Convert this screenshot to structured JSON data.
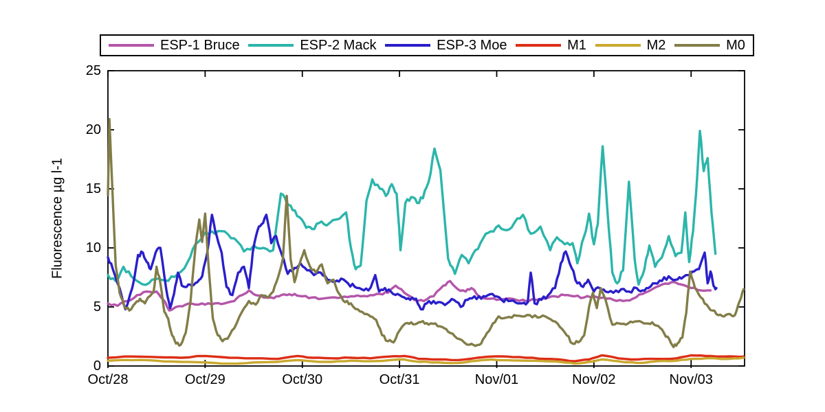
{
  "chart_data": {
    "type": "line",
    "title": "",
    "xlabel": "",
    "ylabel": "Fluorescence µg l-1",
    "ylim": [
      0,
      25
    ],
    "yticks": [
      0,
      5,
      10,
      15,
      20,
      25
    ],
    "xlim_days": [
      0,
      6.55
    ],
    "xtick_positions": [
      0,
      1,
      2,
      3,
      4,
      5,
      6
    ],
    "xtick_labels": [
      "Oct/28",
      "Oct/29",
      "Oct/30",
      "Oct/31",
      "Nov/01",
      "Nov/02",
      "Nov/03"
    ],
    "grid": false,
    "legend_position": "top",
    "series": [
      {
        "name": "ESP-1 Bruce",
        "color": "#b456aa",
        "x": [
          0,
          0.1,
          0.2,
          0.3,
          0.4,
          0.5,
          0.57,
          0.63,
          0.7,
          0.8,
          0.9,
          1.0,
          1.1,
          1.2,
          1.3,
          1.38,
          1.45,
          1.52,
          1.6,
          1.68,
          1.76,
          1.84,
          1.92,
          2.0,
          2.1,
          2.2,
          2.3,
          2.4,
          2.5,
          2.6,
          2.7,
          2.8,
          2.88,
          2.96,
          3.05,
          3.15,
          3.25,
          3.35,
          3.45,
          3.52,
          3.6,
          3.68,
          3.74,
          3.82,
          3.9,
          4.0,
          4.1,
          4.2,
          4.3,
          4.4,
          4.5,
          4.6,
          4.7,
          4.8,
          4.9,
          5.0,
          5.1,
          5.2,
          5.3,
          5.4,
          5.5,
          5.6,
          5.7,
          5.8,
          5.9,
          6.0,
          6.1,
          6.2
        ],
        "y": [
          5.3,
          5.1,
          5.5,
          6.0,
          6.3,
          6.3,
          5.6,
          4.7,
          5.0,
          5.2,
          5.2,
          5.2,
          5.3,
          5.3,
          5.5,
          6.0,
          6.4,
          6.0,
          5.8,
          5.8,
          5.9,
          6.0,
          6.1,
          5.9,
          5.8,
          5.7,
          5.8,
          5.8,
          5.9,
          5.9,
          6.0,
          6.1,
          6.2,
          6.8,
          6.2,
          5.6,
          5.5,
          5.9,
          6.8,
          7.2,
          6.5,
          6.3,
          6.6,
          5.9,
          5.7,
          5.6,
          5.7,
          5.6,
          5.5,
          5.6,
          5.7,
          5.9,
          6.0,
          5.9,
          5.8,
          5.9,
          5.8,
          5.6,
          5.5,
          5.7,
          6.1,
          6.5,
          6.9,
          7.1,
          6.9,
          6.6,
          6.4,
          6.4
        ]
      },
      {
        "name": "ESP-2 Mack",
        "color": "#2cb5ab",
        "x": [
          0,
          0.08,
          0.16,
          0.24,
          0.32,
          0.42,
          0.52,
          0.62,
          0.72,
          0.82,
          0.9,
          1.0,
          1.1,
          1.2,
          1.3,
          1.4,
          1.5,
          1.6,
          1.7,
          1.78,
          1.84,
          1.9,
          1.97,
          2.04,
          2.1,
          2.17,
          2.25,
          2.35,
          2.45,
          2.5,
          2.55,
          2.6,
          2.66,
          2.72,
          2.8,
          2.86,
          2.92,
          2.97,
          3.01,
          3.06,
          3.12,
          3.18,
          3.24,
          3.3,
          3.36,
          3.42,
          3.5,
          3.57,
          3.64,
          3.71,
          3.78,
          3.86,
          3.94,
          4.02,
          4.1,
          4.18,
          4.27,
          4.35,
          4.45,
          4.55,
          4.62,
          4.7,
          4.78,
          4.83,
          4.9,
          4.95,
          5.0,
          5.04,
          5.09,
          5.14,
          5.19,
          5.24,
          5.3,
          5.36,
          5.42,
          5.46,
          5.52,
          5.57,
          5.63,
          5.7,
          5.77,
          5.84,
          5.9,
          5.94,
          5.98,
          6.02,
          6.05,
          6.09,
          6.13,
          6.17,
          6.21,
          6.25
        ],
        "y": [
          7.7,
          7.2,
          8.4,
          7.6,
          7.1,
          7.0,
          7.4,
          7.2,
          7.8,
          8.8,
          10.3,
          11.3,
          11.2,
          11.4,
          10.8,
          9.7,
          10.2,
          10.0,
          9.8,
          14.6,
          13.8,
          13.2,
          12.6,
          11.7,
          11.6,
          12.1,
          11.9,
          12.4,
          13.0,
          10.0,
          8.2,
          8.5,
          14.0,
          15.8,
          15.0,
          14.4,
          15.4,
          14.6,
          9.8,
          13.8,
          14.3,
          13.8,
          14.2,
          15.6,
          18.4,
          16.6,
          9.1,
          7.8,
          9.4,
          8.7,
          9.8,
          10.8,
          11.4,
          11.9,
          11.5,
          12.1,
          12.8,
          11.2,
          11.8,
          9.8,
          10.9,
          10.3,
          10.4,
          8.7,
          11.0,
          12.9,
          10.3,
          12.0,
          18.6,
          13.0,
          7.9,
          7.0,
          8.1,
          15.6,
          9.0,
          6.9,
          8.2,
          10.2,
          8.4,
          9.2,
          11.0,
          9.3,
          9.6,
          13.0,
          8.8,
          11.4,
          14.5,
          19.9,
          16.5,
          17.6,
          13.0,
          9.5
        ]
      },
      {
        "name": "ESP-3 Moe",
        "color": "#2a1fc9",
        "x": [
          0,
          0.05,
          0.12,
          0.18,
          0.25,
          0.31,
          0.36,
          0.4,
          0.44,
          0.49,
          0.54,
          0.6,
          0.64,
          0.68,
          0.72,
          0.76,
          0.81,
          0.86,
          0.92,
          0.97,
          1.02,
          1.07,
          1.12,
          1.17,
          1.22,
          1.28,
          1.34,
          1.4,
          1.45,
          1.49,
          1.54,
          1.58,
          1.63,
          1.68,
          1.73,
          1.79,
          1.85,
          1.92,
          1.98,
          2.05,
          2.12,
          2.19,
          2.26,
          2.33,
          2.4,
          2.47,
          2.54,
          2.61,
          2.68,
          2.75,
          2.79,
          2.85,
          2.91,
          2.98,
          3.05,
          3.11,
          3.17,
          3.22,
          3.28,
          3.35,
          3.42,
          3.49,
          3.56,
          3.63,
          3.7,
          3.77,
          3.84,
          3.91,
          3.98,
          4.05,
          4.12,
          4.19,
          4.26,
          4.32,
          4.35,
          4.39,
          4.46,
          4.53,
          4.6,
          4.66,
          4.71,
          4.77,
          4.83,
          4.89,
          4.94,
          5.0,
          5.06,
          5.12,
          5.2,
          5.28,
          5.36,
          5.44,
          5.5,
          5.56,
          5.63,
          5.7,
          5.77,
          5.84,
          5.9,
          5.97,
          6.03,
          6.08,
          6.14,
          6.17,
          6.2,
          6.23,
          6.26
        ],
        "y": [
          9.2,
          8.2,
          6.6,
          4.8,
          6.6,
          9.4,
          9.6,
          8.8,
          8.2,
          9.6,
          10.0,
          6.5,
          4.9,
          6.1,
          7.9,
          6.8,
          6.7,
          6.8,
          7.1,
          7.6,
          9.5,
          12.8,
          11.0,
          9.6,
          6.7,
          6.0,
          7.9,
          8.4,
          6.6,
          9.6,
          11.5,
          12.0,
          12.8,
          10.4,
          11.0,
          9.4,
          7.8,
          8.3,
          8.7,
          8.1,
          7.7,
          7.9,
          7.3,
          7.1,
          7.4,
          7.0,
          6.7,
          6.5,
          6.4,
          7.7,
          6.3,
          6.6,
          6.3,
          6.1,
          5.8,
          5.6,
          5.7,
          4.8,
          5.3,
          5.5,
          5.4,
          5.3,
          5.6,
          5.0,
          5.6,
          5.9,
          5.7,
          6.0,
          5.9,
          5.6,
          5.5,
          5.4,
          5.3,
          5.4,
          7.9,
          5.3,
          5.6,
          6.0,
          6.6,
          8.7,
          9.7,
          8.3,
          7.0,
          6.7,
          7.3,
          6.3,
          6.6,
          6.3,
          6.2,
          6.5,
          6.3,
          6.6,
          6.4,
          6.6,
          7.0,
          7.2,
          7.6,
          7.3,
          7.4,
          7.7,
          8.0,
          8.2,
          9.6,
          7.0,
          8.0,
          6.8,
          6.6
        ]
      },
      {
        "name": "M1",
        "color": "#dd2e16",
        "x": [
          0,
          0.25,
          0.5,
          0.75,
          1.0,
          1.25,
          1.5,
          1.75,
          1.95,
          2.1,
          2.3,
          2.5,
          2.7,
          2.9,
          3.05,
          3.2,
          3.4,
          3.6,
          3.8,
          3.95,
          4.1,
          4.3,
          4.5,
          4.65,
          4.8,
          4.95,
          5.08,
          5.25,
          5.45,
          5.65,
          5.85,
          6.0,
          6.15,
          6.3,
          6.45,
          6.54
        ],
        "y": [
          0.7,
          0.8,
          0.75,
          0.7,
          0.85,
          0.7,
          0.65,
          0.6,
          0.85,
          0.7,
          0.65,
          0.7,
          0.65,
          0.8,
          0.85,
          0.6,
          0.55,
          0.5,
          0.7,
          0.8,
          0.8,
          0.7,
          0.6,
          0.55,
          0.4,
          0.55,
          0.9,
          0.65,
          0.55,
          0.6,
          0.65,
          0.9,
          0.85,
          0.8,
          0.8,
          0.8
        ]
      },
      {
        "name": "M2",
        "color": "#c9a92e",
        "x": [
          0,
          0.25,
          0.5,
          0.75,
          1.0,
          1.25,
          1.5,
          1.75,
          1.95,
          2.1,
          2.3,
          2.5,
          2.7,
          2.9,
          3.05,
          3.2,
          3.4,
          3.6,
          3.8,
          3.95,
          4.1,
          4.3,
          4.5,
          4.65,
          4.8,
          4.95,
          5.08,
          5.25,
          5.45,
          5.65,
          5.85,
          6.0,
          6.15,
          6.3,
          6.45,
          6.54
        ],
        "y": [
          0.45,
          0.5,
          0.45,
          0.35,
          0.3,
          0.2,
          0.3,
          0.35,
          0.5,
          0.4,
          0.35,
          0.45,
          0.4,
          0.5,
          0.55,
          0.35,
          0.3,
          0.25,
          0.45,
          0.55,
          0.5,
          0.45,
          0.4,
          0.35,
          0.2,
          0.35,
          0.55,
          0.4,
          0.25,
          0.4,
          0.45,
          0.6,
          0.65,
          0.6,
          0.65,
          0.7
        ]
      },
      {
        "name": "M0",
        "color": "#827d48",
        "x": [
          0,
          0.015,
          0.04,
          0.08,
          0.12,
          0.17,
          0.22,
          0.28,
          0.33,
          0.38,
          0.43,
          0.47,
          0.5,
          0.54,
          0.58,
          0.62,
          0.66,
          0.7,
          0.75,
          0.8,
          0.85,
          0.9,
          0.94,
          0.97,
          1.0,
          1.04,
          1.08,
          1.13,
          1.18,
          1.23,
          1.3,
          1.38,
          1.45,
          1.52,
          1.58,
          1.64,
          1.7,
          1.75,
          1.8,
          1.84,
          1.88,
          1.92,
          1.97,
          2.02,
          2.08,
          2.14,
          2.2,
          2.26,
          2.32,
          2.38,
          2.44,
          2.5,
          2.57,
          2.64,
          2.7,
          2.76,
          2.82,
          2.88,
          2.94,
          3.0,
          3.06,
          3.12,
          3.18,
          3.24,
          3.3,
          3.37,
          3.44,
          3.5,
          3.57,
          3.64,
          3.72,
          3.78,
          3.84,
          3.9,
          3.96,
          4.02,
          4.1,
          4.18,
          4.26,
          4.34,
          4.42,
          4.5,
          4.58,
          4.65,
          4.72,
          4.78,
          4.84,
          4.9,
          4.95,
          4.99,
          5.03,
          5.07,
          5.12,
          5.19,
          5.26,
          5.33,
          5.4,
          5.47,
          5.54,
          5.6,
          5.66,
          5.72,
          5.78,
          5.82,
          5.86,
          5.91,
          5.95,
          5.99,
          6.04,
          6.1,
          6.16,
          6.22,
          6.28,
          6.34,
          6.4,
          6.45,
          6.5,
          6.54
        ],
        "y": [
          14.5,
          20.9,
          16.0,
          8.5,
          6.2,
          5.0,
          4.7,
          5.3,
          5.7,
          5.3,
          5.9,
          6.3,
          8.4,
          7.0,
          4.6,
          4.0,
          2.6,
          1.9,
          1.8,
          2.8,
          5.5,
          10.0,
          12.4,
          10.5,
          12.9,
          8.0,
          4.0,
          2.6,
          2.1,
          2.3,
          3.2,
          4.6,
          5.5,
          5.2,
          6.0,
          5.8,
          6.3,
          7.5,
          9.1,
          14.4,
          9.0,
          7.1,
          8.6,
          9.8,
          8.4,
          7.9,
          8.6,
          7.0,
          7.3,
          6.1,
          5.4,
          5.3,
          4.8,
          4.4,
          4.2,
          3.9,
          2.6,
          2.1,
          2.0,
          3.0,
          3.6,
          3.7,
          3.6,
          3.8,
          3.5,
          3.6,
          3.3,
          2.9,
          2.5,
          2.2,
          1.8,
          1.7,
          1.9,
          2.8,
          3.6,
          4.2,
          4.1,
          4.3,
          4.2,
          4.3,
          4.1,
          4.2,
          3.8,
          3.3,
          2.6,
          1.9,
          2.0,
          2.6,
          5.0,
          6.2,
          4.9,
          6.6,
          5.6,
          3.5,
          3.6,
          3.5,
          3.7,
          3.8,
          3.6,
          3.7,
          3.4,
          2.8,
          2.2,
          1.6,
          1.9,
          2.4,
          4.5,
          8.0,
          6.6,
          5.8,
          5.2,
          4.7,
          4.3,
          4.2,
          4.4,
          4.3,
          5.5,
          6.5
        ]
      }
    ]
  }
}
